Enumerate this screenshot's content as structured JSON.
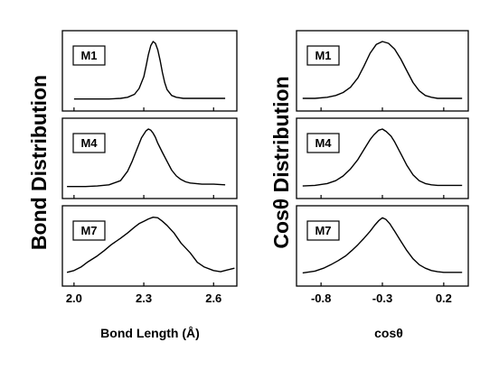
{
  "chart_data": [
    {
      "type": "line",
      "ylabel": "Bond Distribution",
      "xlabel": "Bond Length (Å)",
      "xlim": [
        1.95,
        2.7
      ],
      "xticks": [
        2.0,
        2.3,
        2.6
      ],
      "tick_labels": [
        "2.0",
        "2.3",
        "2.6"
      ],
      "panels": [
        {
          "label": "M1",
          "x": [
            2.0,
            2.05,
            2.1,
            2.15,
            2.2,
            2.23,
            2.26,
            2.28,
            2.3,
            2.31,
            2.32,
            2.33,
            2.34,
            2.35,
            2.36,
            2.37,
            2.38,
            2.39,
            2.4,
            2.42,
            2.44,
            2.47,
            2.5,
            2.55,
            2.6,
            2.65
          ],
          "y": [
            0.02,
            0.02,
            0.02,
            0.02,
            0.03,
            0.05,
            0.1,
            0.2,
            0.4,
            0.58,
            0.78,
            0.93,
            1.0,
            0.97,
            0.86,
            0.68,
            0.47,
            0.3,
            0.18,
            0.08,
            0.05,
            0.03,
            0.03,
            0.03,
            0.03,
            0.03
          ]
        },
        {
          "label": "M4",
          "x": [
            1.97,
            2.0,
            2.05,
            2.1,
            2.15,
            2.2,
            2.23,
            2.25,
            2.27,
            2.29,
            2.31,
            2.32,
            2.33,
            2.34,
            2.35,
            2.36,
            2.38,
            2.4,
            2.42,
            2.44,
            2.46,
            2.48,
            2.5,
            2.55,
            2.6,
            2.65
          ],
          "y": [
            0.02,
            0.02,
            0.02,
            0.03,
            0.05,
            0.12,
            0.28,
            0.45,
            0.65,
            0.85,
            0.97,
            1.0,
            0.98,
            0.93,
            0.86,
            0.76,
            0.6,
            0.45,
            0.3,
            0.2,
            0.14,
            0.1,
            0.08,
            0.06,
            0.06,
            0.05
          ]
        },
        {
          "label": "M7",
          "x": [
            1.97,
            2.0,
            2.03,
            2.06,
            2.1,
            2.13,
            2.16,
            2.2,
            2.23,
            2.26,
            2.28,
            2.3,
            2.32,
            2.34,
            2.36,
            2.38,
            2.4,
            2.43,
            2.46,
            2.5,
            2.53,
            2.56,
            2.6,
            2.63,
            2.66,
            2.69
          ],
          "y": [
            0.05,
            0.08,
            0.14,
            0.23,
            0.33,
            0.42,
            0.52,
            0.63,
            0.72,
            0.82,
            0.88,
            0.92,
            0.96,
            0.99,
            0.98,
            0.92,
            0.85,
            0.72,
            0.55,
            0.38,
            0.22,
            0.14,
            0.08,
            0.06,
            0.09,
            0.12
          ]
        }
      ]
    },
    {
      "type": "line",
      "ylabel": "Cosθ Distribution",
      "xlabel": "cosθ",
      "xlim": [
        -1.0,
        0.4
      ],
      "xticks": [
        -0.8,
        -0.3,
        0.2
      ],
      "tick_labels": [
        "-0.8",
        "-0.3",
        "0.2"
      ],
      "panels": [
        {
          "label": "M1",
          "x": [
            -0.95,
            -0.85,
            -0.75,
            -0.68,
            -0.62,
            -0.56,
            -0.5,
            -0.45,
            -0.4,
            -0.35,
            -0.3,
            -0.25,
            -0.2,
            -0.15,
            -0.1,
            -0.05,
            0.0,
            0.05,
            0.1,
            0.15,
            0.2,
            0.25,
            0.3,
            0.35
          ],
          "y": [
            0.03,
            0.03,
            0.05,
            0.08,
            0.13,
            0.22,
            0.38,
            0.58,
            0.8,
            0.95,
            1.0,
            0.97,
            0.87,
            0.7,
            0.5,
            0.3,
            0.16,
            0.08,
            0.05,
            0.03,
            0.03,
            0.03,
            0.03,
            0.03
          ]
        },
        {
          "label": "M4",
          "x": [
            -0.95,
            -0.85,
            -0.75,
            -0.68,
            -0.62,
            -0.56,
            -0.5,
            -0.45,
            -0.4,
            -0.37,
            -0.33,
            -0.3,
            -0.27,
            -0.23,
            -0.2,
            -0.15,
            -0.1,
            -0.05,
            0.0,
            0.05,
            0.1,
            0.15,
            0.2,
            0.25,
            0.3,
            0.35
          ],
          "y": [
            0.03,
            0.04,
            0.07,
            0.12,
            0.2,
            0.32,
            0.48,
            0.65,
            0.82,
            0.9,
            0.98,
            1.0,
            0.96,
            0.88,
            0.78,
            0.58,
            0.38,
            0.22,
            0.12,
            0.07,
            0.05,
            0.04,
            0.04,
            0.04,
            0.04,
            0.04
          ]
        },
        {
          "label": "M7",
          "x": [
            -0.95,
            -0.85,
            -0.78,
            -0.72,
            -0.66,
            -0.6,
            -0.55,
            -0.5,
            -0.45,
            -0.4,
            -0.36,
            -0.33,
            -0.3,
            -0.27,
            -0.24,
            -0.2,
            -0.15,
            -0.1,
            -0.05,
            0.0,
            0.05,
            0.1,
            0.15,
            0.2,
            0.27,
            0.35
          ],
          "y": [
            0.04,
            0.07,
            0.12,
            0.18,
            0.25,
            0.33,
            0.42,
            0.52,
            0.63,
            0.75,
            0.86,
            0.93,
            0.98,
            0.95,
            0.88,
            0.75,
            0.58,
            0.42,
            0.28,
            0.18,
            0.12,
            0.08,
            0.06,
            0.05,
            0.05,
            0.05
          ]
        }
      ]
    }
  ]
}
